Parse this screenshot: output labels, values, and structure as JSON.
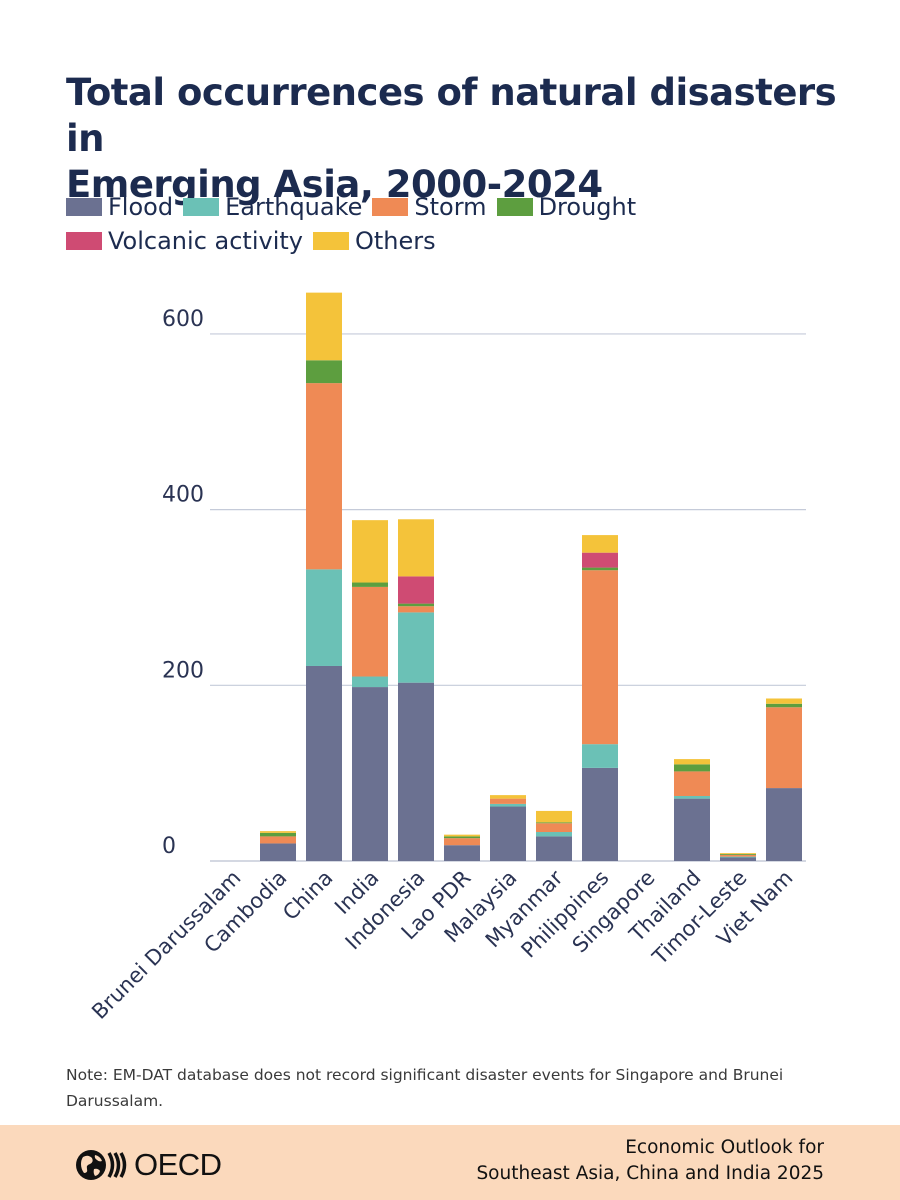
{
  "title_line1": "Total occurrences of natural disasters in",
  "title_line2": "Emerging Asia, 2000-2024",
  "note": "Note: EM-DAT database does not record significant disaster events for Singapore and Brunei Darussalam.",
  "footer": {
    "logo_text": "OECD",
    "publication_line1": "Economic Outlook for",
    "publication_line2": "Southeast Asia, China and India 2025"
  },
  "colors": {
    "flood": "#6b7191",
    "earthquake": "#6bc1b6",
    "storm": "#ef8a55",
    "drought": "#5d9e3f",
    "volcanic": "#cf4b73",
    "others": "#f4c33a",
    "grid": "#c5cbd9",
    "axis_text": "#2a3353"
  },
  "chart_data": {
    "type": "bar",
    "stacked": true,
    "title": "Total occurrences of natural disasters in Emerging Asia, 2000-2024",
    "xlabel": "",
    "ylabel": "",
    "ylim": [
      0,
      650
    ],
    "yticks": [
      0,
      200,
      400,
      600
    ],
    "legend_position": "top-left",
    "categories": [
      "Brunei Darussalam",
      "Cambodia",
      "China",
      "India",
      "Indonesia",
      "Lao PDR",
      "Malaysia",
      "Myanmar",
      "Philippines",
      "Singapore",
      "Thailand",
      "Timor-Leste",
      "Viet Nam"
    ],
    "series": [
      {
        "name": "Flood",
        "key": "flood",
        "values": [
          0,
          20,
          222,
          198,
          203,
          18,
          62,
          28,
          106,
          0,
          71,
          4,
          83
        ]
      },
      {
        "name": "Earthquake",
        "key": "earthquake",
        "values": [
          0,
          0,
          110,
          12,
          80,
          0,
          3,
          5,
          27,
          0,
          3,
          1,
          0
        ]
      },
      {
        "name": "Storm",
        "key": "storm",
        "values": [
          0,
          8,
          212,
          102,
          7,
          8,
          6,
          10,
          198,
          0,
          28,
          2,
          92
        ]
      },
      {
        "name": "Drought",
        "key": "drought",
        "values": [
          0,
          4,
          26,
          5,
          3,
          2,
          0,
          1,
          3,
          0,
          8,
          1,
          4
        ]
      },
      {
        "name": "Volcanic activity",
        "key": "volcanic",
        "values": [
          0,
          0,
          0,
          0,
          31,
          0,
          0,
          0,
          17,
          0,
          0,
          0,
          0
        ]
      },
      {
        "name": "Others",
        "key": "others",
        "values": [
          0,
          2,
          77,
          71,
          65,
          2,
          4,
          13,
          20,
          0,
          6,
          1,
          6
        ]
      }
    ]
  }
}
